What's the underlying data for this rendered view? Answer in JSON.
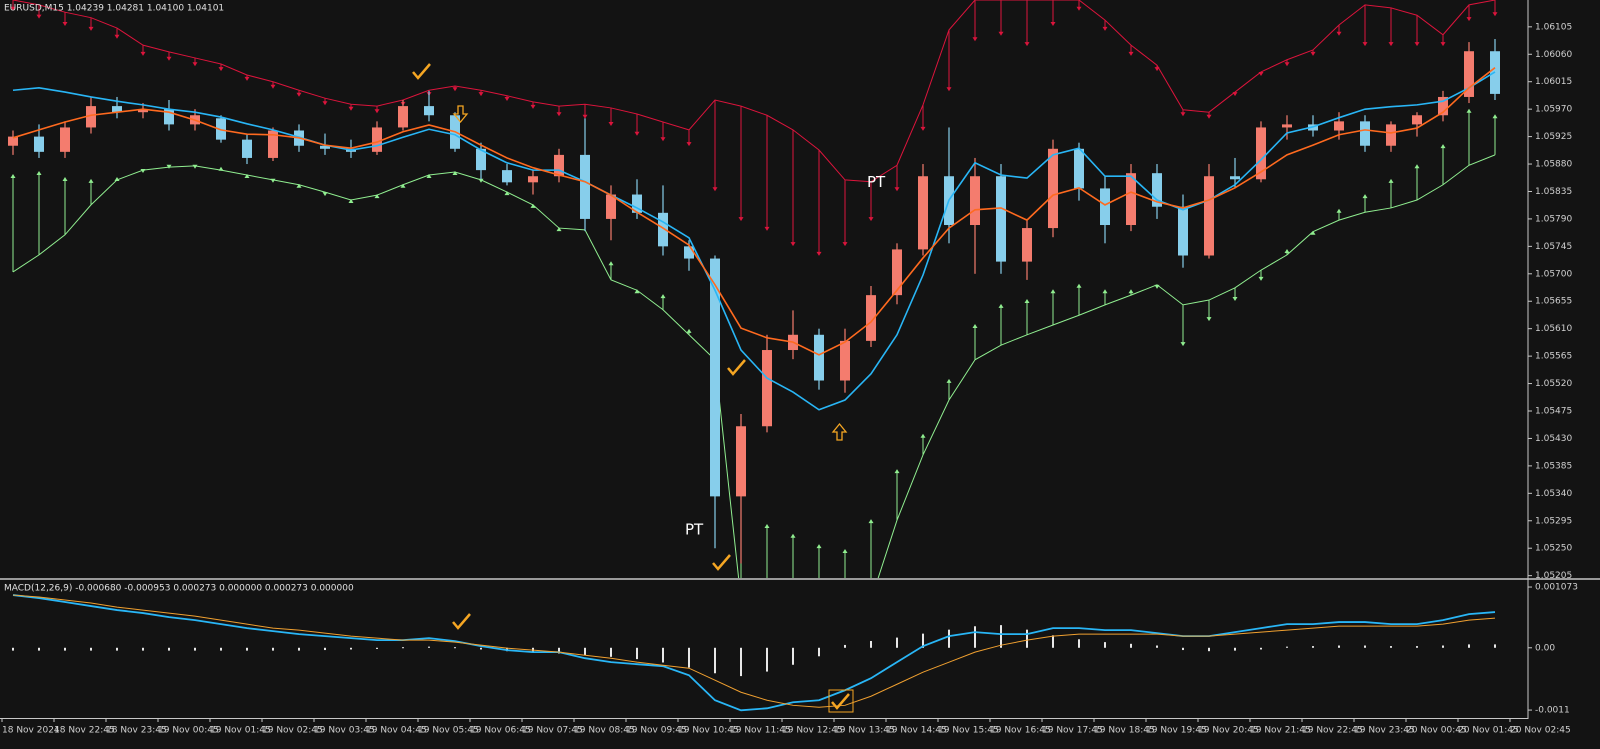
{
  "chart_data": [
    {
      "type": "candlestick",
      "title": "EURUSD,M15  1.04239 1.04281 1.04100 1.04101",
      "up_color": "#f47c6e",
      "down_color": "#87ceeb",
      "open": [
        1.0591,
        1.05925,
        1.059,
        1.0594,
        1.05975,
        1.05965,
        1.0597,
        1.05945,
        1.05955,
        1.0592,
        1.0589,
        1.05935,
        1.0591,
        1.05905,
        1.059,
        1.0594,
        1.05975,
        1.0596,
        1.05905,
        1.0587,
        1.0585,
        1.0586,
        1.05895,
        1.0579,
        1.0583,
        1.058,
        1.05745,
        1.05725,
        1.05335,
        1.0545,
        1.05575,
        1.056,
        1.05525,
        1.0559,
        1.05665,
        1.0574,
        1.0586,
        1.0578,
        1.0586,
        1.0572,
        1.05775,
        1.05905,
        1.0584,
        1.0578,
        1.05865,
        1.0581,
        1.0573,
        1.0586,
        1.05855,
        1.0594,
        1.05945,
        1.05935,
        1.0595,
        1.0591,
        1.05945,
        1.0596,
        1.0599,
        1.06065
      ],
      "high": [
        1.05935,
        1.05945,
        1.0595,
        1.0599,
        1.0599,
        1.0598,
        1.05985,
        1.0597,
        1.0596,
        1.0593,
        1.0594,
        1.05945,
        1.0593,
        1.0592,
        1.0595,
        1.05985,
        1.06,
        1.05965,
        1.05915,
        1.0588,
        1.0587,
        1.05905,
        1.05955,
        1.05845,
        1.05855,
        1.05845,
        1.05755,
        1.0573,
        1.0547,
        1.056,
        1.0564,
        1.0561,
        1.0561,
        1.0568,
        1.0575,
        1.0588,
        1.0594,
        1.0589,
        1.0588,
        1.0579,
        1.0592,
        1.05915,
        1.0586,
        1.0588,
        1.0588,
        1.0583,
        1.0588,
        1.0589,
        1.0595,
        1.0596,
        1.0596,
        1.05965,
        1.0596,
        1.0595,
        1.05965,
        1.06,
        1.0608,
        1.06085
      ],
      "low": [
        1.05895,
        1.0589,
        1.0589,
        1.0593,
        1.05955,
        1.05955,
        1.05935,
        1.05935,
        1.05915,
        1.0588,
        1.05885,
        1.059,
        1.05895,
        1.0589,
        1.05895,
        1.05935,
        1.0595,
        1.059,
        1.05855,
        1.05845,
        1.0583,
        1.0585,
        1.0577,
        1.05755,
        1.0579,
        1.0573,
        1.05705,
        1.0525,
        1.05225,
        1.0544,
        1.0556,
        1.0551,
        1.05505,
        1.0558,
        1.0565,
        1.0573,
        1.0575,
        1.057,
        1.057,
        1.0569,
        1.0576,
        1.0582,
        1.0575,
        1.0577,
        1.0579,
        1.0571,
        1.05725,
        1.0584,
        1.0585,
        1.0592,
        1.05925,
        1.0592,
        1.059,
        1.059,
        1.05925,
        1.0595,
        1.0598,
        1.05985
      ],
      "close": [
        1.05925,
        1.059,
        1.0594,
        1.05975,
        1.05965,
        1.0597,
        1.05945,
        1.0596,
        1.0592,
        1.0589,
        1.05935,
        1.0591,
        1.05905,
        1.059,
        1.0594,
        1.05975,
        1.0596,
        1.05905,
        1.0587,
        1.0585,
        1.0586,
        1.05895,
        1.0579,
        1.0583,
        1.058,
        1.05745,
        1.05725,
        1.05335,
        1.0545,
        1.05575,
        1.056,
        1.05525,
        1.0559,
        1.05665,
        1.0574,
        1.0586,
        1.0578,
        1.0586,
        1.0572,
        1.05775,
        1.05905,
        1.0584,
        1.0578,
        1.05865,
        1.0581,
        1.0573,
        1.0586,
        1.05855,
        1.0594,
        1.05945,
        1.05935,
        1.0595,
        1.0591,
        1.05945,
        1.0596,
        1.0599,
        1.06065,
        1.05995
      ],
      "lines": [
        {
          "color": "#29b6f6",
          "values": [
            1.06001,
            1.06005,
            1.05998,
            1.0599,
            1.05983,
            1.05977,
            1.0597,
            1.05965,
            1.05957,
            1.05946,
            1.05936,
            1.05924,
            1.05911,
            1.05903,
            1.0591,
            1.05924,
            1.05937,
            1.05928,
            1.05903,
            1.05882,
            1.0587,
            1.0587,
            1.05851,
            1.05829,
            1.05808,
            1.05785,
            1.05759,
            1.05673,
            1.05575,
            1.05529,
            1.05506,
            1.05477,
            1.05493,
            1.05536,
            1.056,
            1.05698,
            1.05821,
            1.05882,
            1.05862,
            1.05857,
            1.05895,
            1.05906,
            1.0586,
            1.0586,
            1.05821,
            1.05805,
            1.05821,
            1.05846,
            1.05887,
            1.05931,
            1.05941,
            1.05956,
            1.0597,
            1.05974,
            1.05977,
            1.05983,
            1.06005,
            1.06031
          ]
        },
        {
          "color": "#ff6a1f",
          "values": [
            1.05923,
            1.05936,
            1.05949,
            1.0596,
            1.05965,
            1.0597,
            1.05965,
            1.05952,
            1.05936,
            1.05929,
            1.05928,
            1.05923,
            1.05911,
            1.05906,
            1.05916,
            1.05933,
            1.05944,
            1.05933,
            1.05911,
            1.0589,
            1.05874,
            1.05862,
            1.05851,
            1.05829,
            1.05801,
            1.05775,
            1.05747,
            1.05682,
            1.05611,
            1.05595,
            1.05588,
            1.05567,
            1.05588,
            1.05621,
            1.05673,
            1.05726,
            1.05775,
            1.05805,
            1.05808,
            1.05788,
            1.05829,
            1.05841,
            1.05813,
            1.05834,
            1.05818,
            1.05808,
            1.05821,
            1.05841,
            1.05867,
            1.05895,
            1.05911,
            1.05928,
            1.05936,
            1.05931,
            1.05939,
            1.05965,
            1.06005,
            1.06038
          ]
        }
      ],
      "bands": [
        {
          "color": "#dc143c",
          "values": [
            1.06149,
            1.06141,
            1.06129,
            1.0612,
            1.06103,
            1.06075,
            1.06064,
            1.06054,
            1.06044,
            1.06026,
            1.06015,
            1.06001,
            1.05988,
            1.05978,
            1.05975,
            1.05985,
            1.06001,
            1.06008,
            1.06001,
            1.05992,
            1.05982,
            1.05975,
            1.05978,
            1.05972,
            1.05962,
            1.05949,
            1.05936,
            1.05985,
            1.05975,
            1.0596,
            1.05936,
            1.05903,
            1.05854,
            1.05851,
            1.05878,
            1.05977,
            1.061,
            1.06149,
            1.06149,
            1.06149,
            1.06149,
            1.06149,
            1.06116,
            1.06075,
            1.06042,
            1.05969,
            1.05965,
            1.05998,
            1.06031,
            1.06051,
            1.06067,
            1.06108,
            1.06141,
            1.06136,
            1.06124,
            1.06092,
            1.06141,
            1.06149
          ],
          "markers": [
            1.06133,
            1.0612,
            1.06108,
            1.061,
            1.06087,
            1.06059,
            1.06051,
            1.06042,
            1.06034,
            1.06018,
            1.06005,
            1.05992,
            1.05978,
            1.05969,
            1.05965,
            1.05977,
            1.05993,
            1.06001,
            1.05993,
            1.05985,
            1.05972,
            1.0596,
            1.05956,
            1.05944,
            1.05928,
            1.05919,
            1.05911,
            1.05837,
            1.05788,
            1.05772,
            1.05747,
            1.05731,
            1.05747,
            1.05788,
            1.05837,
            1.05936,
            1.06001,
            1.06083,
            1.06092,
            1.06075,
            1.06108,
            1.06133,
            1.061,
            1.06059,
            1.06034,
            1.0596,
            1.05956,
            1.05993,
            1.06026,
            1.06042,
            1.06059,
            1.06092,
            1.06075,
            1.06075,
            1.06075,
            1.06075,
            1.06116,
            1.06124
          ]
        },
        {
          "color": "#90ee90",
          "values": [
            1.05703,
            1.05731,
            1.05764,
            1.05813,
            1.05854,
            1.0587,
            1.05875,
            1.05877,
            1.0587,
            1.05862,
            1.05854,
            1.05846,
            1.05834,
            1.05821,
            1.05829,
            1.05846,
            1.05862,
            1.05867,
            1.05854,
            1.05834,
            1.05813,
            1.05775,
            1.05772,
            1.0569,
            1.05673,
            1.05641,
            1.056,
            1.05559,
            1.05165,
            1.05165,
            1.05165,
            1.05165,
            1.05165,
            1.05165,
            1.05296,
            1.05403,
            1.05493,
            1.05559,
            1.05583,
            1.056,
            1.05616,
            1.05632,
            1.05649,
            1.05665,
            1.05682,
            1.05649,
            1.05657,
            1.05677,
            1.05706,
            1.05731,
            1.05769,
            1.05788,
            1.05801,
            1.05808,
            1.05821,
            1.05846,
            1.05878,
            1.05895
          ],
          "markers": [
            1.05862,
            1.05867,
            1.05857,
            1.05854,
            1.05857,
            1.05867,
            1.05874,
            1.05874,
            1.05874,
            1.05862,
            1.05851,
            1.05846,
            1.05829,
            1.05821,
            1.05829,
            1.05846,
            1.05862,
            1.05867,
            1.05851,
            1.05834,
            1.05813,
            1.05775,
            1.05796,
            1.05719,
            1.05673,
            1.05665,
            1.05608,
            1.05427,
            1.05395,
            1.05288,
            1.05272,
            1.05255,
            1.05247,
            1.05296,
            1.05378,
            1.05436,
            1.05526,
            1.05616,
            1.05649,
            1.05657,
            1.05673,
            1.05682,
            1.05673,
            1.05673,
            1.05677,
            1.05583,
            1.05624,
            1.05657,
            1.0569,
            1.05739,
            1.05769,
            1.05805,
            1.05829,
            1.05854,
            1.05878,
            1.05911,
            1.05969,
            1.0596
          ]
        }
      ],
      "annotations": [
        {
          "text": "PT",
          "x": 27,
          "y": 1.0528
        },
        {
          "text": "PT",
          "x": 34,
          "y": 1.0585
        }
      ],
      "ylim": [
        1.052,
        1.06149
      ],
      "yticks": [
        1.06105,
        {
          "value": 1.0606,
          "label": "1.06060"
        },
        1.06015,
        {
          "value": 1.0597,
          "label": "1.05970"
        },
        1.05925,
        {
          "value": 1.0588,
          "label": "1.05880"
        },
        1.05835,
        {
          "value": 1.0579,
          "label": "1.05790"
        },
        1.05745,
        {
          "value": 1.057,
          "label": "1.05700"
        },
        1.05655,
        {
          "value": 1.0561,
          "label": "1.05610"
        },
        1.05565,
        {
          "value": 1.0552,
          "label": "1.05520"
        },
        1.05475,
        {
          "value": 1.0543,
          "label": "1.05430"
        },
        1.05385,
        {
          "value": 1.0534,
          "label": "1.05340"
        },
        1.05295,
        {
          "value": 1.0525,
          "label": "1.05250"
        },
        1.05205
      ]
    },
    {
      "type": "macd",
      "title": "MACD(12,26,9) -0.000680 -0.000953 0.000273 0.000000 0.000273 0.000000",
      "histogram_color": "#e8e8e8",
      "histogram": [
        -5e-05,
        -5e-05,
        -5e-05,
        -5e-05,
        -5e-05,
        -5e-05,
        -5e-05,
        -5e-05,
        -5e-05,
        -5e-05,
        -5e-05,
        -5e-05,
        -4e-05,
        -3e-05,
        -2e-05,
        1e-05,
        2e-05,
        1e-05,
        -3e-05,
        -6e-05,
        -8e-05,
        -0.0001,
        -0.00013,
        -0.00016,
        -0.0002,
        -0.00026,
        -0.00035,
        -0.00045,
        -0.0005,
        -0.00042,
        -0.0003,
        -0.00015,
        5e-05,
        0.00012,
        0.00018,
        0.00025,
        0.00032,
        0.00038,
        0.0004,
        0.00032,
        0.00022,
        0.00015,
        0.0001,
        7e-05,
        4e-05,
        -4e-05,
        -6e-05,
        -5e-05,
        -3e-05,
        2e-05,
        3e-05,
        4e-05,
        4e-05,
        3e-05,
        3e-05,
        4e-05,
        6e-05,
        6e-05
      ],
      "lines": [
        {
          "color": "#29b6f6",
          "values": [
            0.000931,
            0.000878,
            0.000808,
            0.000737,
            0.000666,
            0.000613,
            0.000542,
            0.000489,
            0.000418,
            0.000347,
            0.000294,
            0.000241,
            0.000206,
            0.00017,
            0.000135,
            0.000135,
            0.00017,
            0.000117,
            2.9e-05,
            -4.2e-05,
            -7.7e-05,
            -7.7e-05,
            -0.000184,
            -0.000254,
            -0.00029,
            -0.000325,
            -0.000485,
            -0.000927,
            -0.001104,
            -0.001069,
            -0.000962,
            -0.000927,
            -0.00075,
            -0.000538,
            -0.000254,
            2.9e-05,
            0.000206,
            0.000277,
            0.000241,
            0.000241,
            0.000347,
            0.000347,
            0.000312,
            0.000312,
            0.000259,
            0.000206,
            0.000206,
            0.000277,
            0.000347,
            0.000418,
            0.000418,
            0.000454,
            0.000454,
            0.000418,
            0.000418,
            0.000489,
            0.000595,
            0.000631
          ]
        },
        {
          "color": "#f0a030",
          "values": [
            0.000931,
            0.000896,
            0.000843,
            0.00079,
            0.000719,
            0.000666,
            0.000613,
            0.00056,
            0.000489,
            0.000418,
            0.000347,
            0.000312,
            0.000259,
            0.000206,
            0.00017,
            0.000135,
            0.000135,
            0.0001,
            4.6e-05,
            -7e-06,
            -4.2e-05,
            -7.7e-05,
            -0.000131,
            -0.000184,
            -0.000254,
            -0.000308,
            -0.000361,
            -0.000573,
            -0.000785,
            -0.000927,
            -0.001016,
            -0.001051,
            -0.001016,
            -0.000856,
            -0.000644,
            -0.000431,
            -0.000254,
            -7.7e-05,
            4.6e-05,
            0.000135,
            0.000206,
            0.000241,
            0.000241,
            0.000241,
            0.000241,
            0.000206,
            0.000206,
            0.000241,
            0.000277,
            0.000312,
            0.000347,
            0.000383,
            0.000383,
            0.000383,
            0.000383,
            0.000418,
            0.000489,
            0.000524
          ]
        }
      ],
      "ylim": [
        -0.00124,
        0.001197
      ],
      "yticks": [
        0.001073,
        {
          "value": 0,
          "label": "0.00"
        },
        -0.0011
      ],
      "x_labels": [
        "18 Nov 2024",
        "18 Nov 22:45",
        "18 Nov 23:45",
        "19 Nov 00:45",
        "19 Nov 01:45",
        "19 Nov 02:45",
        "19 Nov 03:45",
        "19 Nov 04:45",
        "19 Nov 05:45",
        "19 Nov 06:45",
        "19 Nov 07:45",
        "19 Nov 08:45",
        "19 Nov 09:45",
        "19 Nov 10:45",
        "19 Nov 11:45",
        "19 Nov 12:45",
        "19 Nov 13:45",
        "19 Nov 14:45",
        "19 Nov 15:45",
        "19 Nov 16:45",
        "19 Nov 17:45",
        "19 Nov 18:45",
        "19 Nov 19:45",
        "19 Nov 20:45",
        "19 Nov 21:45",
        "19 Nov 22:45",
        "19 Nov 23:45",
        "20 Nov 00:45",
        "20 Nov 01:45",
        "20 Nov 02:45"
      ]
    }
  ]
}
